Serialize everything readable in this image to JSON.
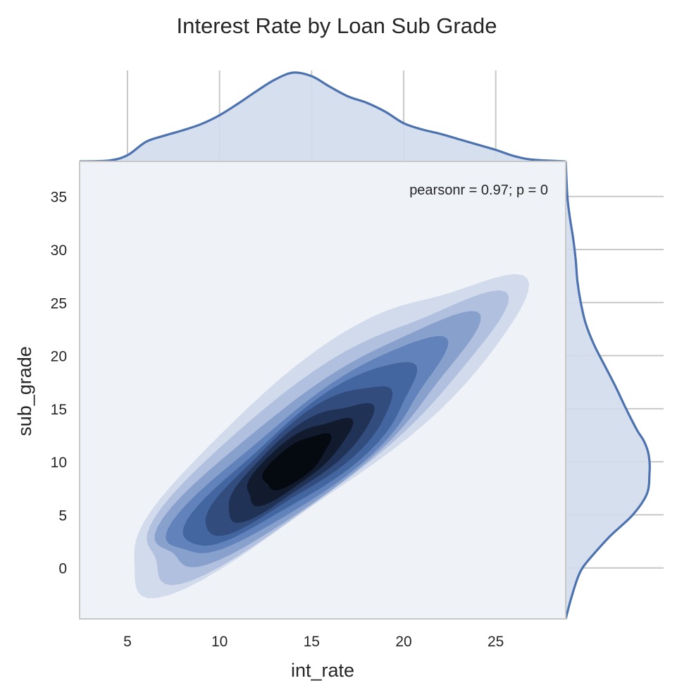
{
  "chart_data": {
    "type": "kde-joint",
    "title": "Interest Rate by Loan Sub Grade",
    "xlabel": "int_rate",
    "ylabel": "sub_grade",
    "xlim": [
      2.4,
      28.8
    ],
    "ylim": [
      -4.8,
      38.3
    ],
    "xticks": [
      5,
      10,
      15,
      20,
      25
    ],
    "yticks": [
      0,
      5,
      10,
      15,
      20,
      25,
      30,
      35
    ],
    "grid": true,
    "annotation": "pearsonr = 0.97; p = 0",
    "annotation_position": "top-right",
    "joint_kde": {
      "peak": [
        14.2,
        10.0
      ],
      "levels": 9,
      "cmap_light": "#d2dbec",
      "cmap_dark": "#050910"
    },
    "marginal_x": {
      "x": [
        2.4,
        4,
        5,
        6,
        7,
        8,
        9,
        10,
        11,
        12,
        13,
        14,
        15,
        16,
        17,
        18,
        19,
        20,
        21,
        22,
        23,
        24,
        25,
        26,
        27,
        28.8
      ],
      "density": [
        0.0,
        0.01,
        0.07,
        0.22,
        0.29,
        0.35,
        0.42,
        0.52,
        0.65,
        0.79,
        0.92,
        1.0,
        0.96,
        0.84,
        0.73,
        0.66,
        0.56,
        0.43,
        0.36,
        0.31,
        0.25,
        0.19,
        0.13,
        0.06,
        0.02,
        0.0
      ]
    },
    "marginal_y": {
      "y": [
        -4.8,
        -3,
        -1,
        0,
        1,
        3,
        5,
        7,
        9,
        10,
        11,
        12,
        13,
        15,
        17,
        19,
        21,
        23,
        25,
        27,
        29,
        31,
        33,
        35,
        38.3
      ],
      "density": [
        0.0,
        0.06,
        0.14,
        0.2,
        0.3,
        0.53,
        0.8,
        0.97,
        1.0,
        1.0,
        0.98,
        0.93,
        0.85,
        0.72,
        0.6,
        0.47,
        0.34,
        0.24,
        0.18,
        0.14,
        0.12,
        0.09,
        0.05,
        0.02,
        0.0
      ]
    },
    "colors": {
      "line": "#4c72b0",
      "fill": "#d2dbec",
      "plot_bg": "#eff2f7",
      "grid": "#c8c8c8",
      "axis_edge": "#c8c8c8"
    }
  }
}
